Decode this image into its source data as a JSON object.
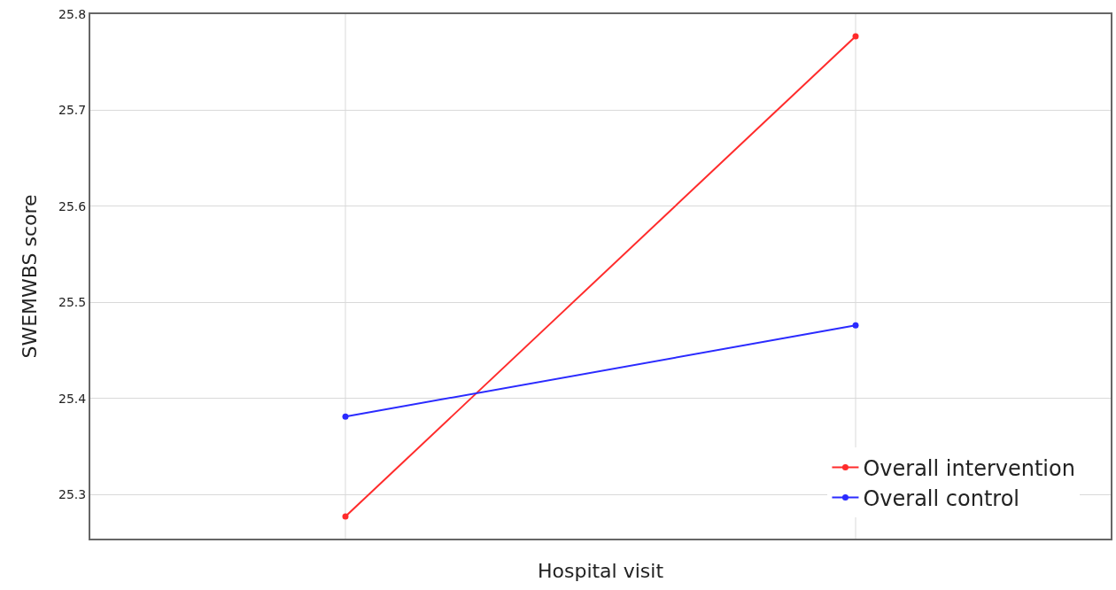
{
  "chart_data": {
    "type": "line",
    "xlabel": "Hospital visit",
    "ylabel": "SWEMWBS score",
    "categories": [
      null,
      null
    ],
    "series": [
      {
        "name": "Overall intervention",
        "color": "#ff2b2b",
        "values": [
          25.277,
          25.777
        ]
      },
      {
        "name": "Overall control",
        "color": "#2b2bff",
        "values": [
          25.381,
          25.476
        ]
      }
    ],
    "ylim": [
      25.254,
      25.8
    ],
    "yticks": [
      25.3,
      25.4,
      25.5,
      25.6,
      25.7,
      25.8
    ],
    "grid": true,
    "legend": "bottom right",
    "marker": "circle",
    "line_style": "solid"
  }
}
